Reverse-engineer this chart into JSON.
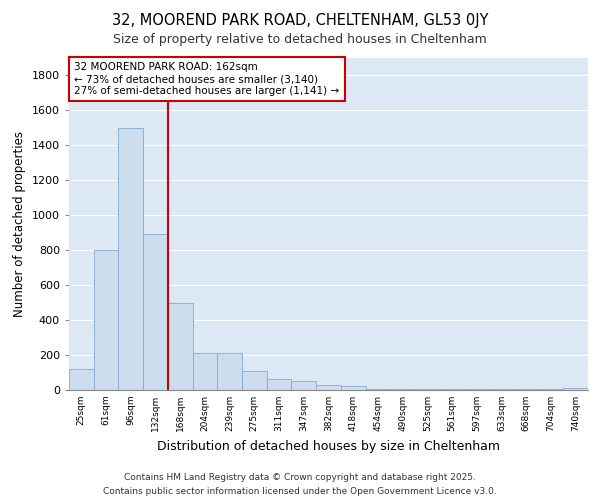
{
  "title1": "32, MOOREND PARK ROAD, CHELTENHAM, GL53 0JY",
  "title2": "Size of property relative to detached houses in Cheltenham",
  "xlabel": "Distribution of detached houses by size in Cheltenham",
  "ylabel": "Number of detached properties",
  "bin_labels": [
    "25sqm",
    "61sqm",
    "96sqm",
    "132sqm",
    "168sqm",
    "204sqm",
    "239sqm",
    "275sqm",
    "311sqm",
    "347sqm",
    "382sqm",
    "418sqm",
    "454sqm",
    "490sqm",
    "525sqm",
    "561sqm",
    "597sqm",
    "633sqm",
    "668sqm",
    "704sqm",
    "740sqm"
  ],
  "bar_heights": [
    120,
    800,
    1500,
    890,
    500,
    210,
    210,
    110,
    65,
    50,
    30,
    25,
    5,
    5,
    5,
    3,
    3,
    3,
    3,
    3,
    10
  ],
  "bar_color": "#ccdded",
  "bar_edge_color": "#88aacc",
  "background_color": "#dde8f5",
  "grid_color": "#ffffff",
  "vline_color": "#cc0000",
  "annotation_line1": "32 MOOREND PARK ROAD: 162sqm",
  "annotation_line2": "← 73% of detached houses are smaller (3,140)",
  "annotation_line3": "27% of semi-detached houses are larger (1,141) →",
  "ylim": [
    0,
    1900
  ],
  "yticks": [
    0,
    200,
    400,
    600,
    800,
    1000,
    1200,
    1400,
    1600,
    1800
  ],
  "footer1": "Contains HM Land Registry data © Crown copyright and database right 2025.",
  "footer2": "Contains public sector information licensed under the Open Government Licence v3.0."
}
